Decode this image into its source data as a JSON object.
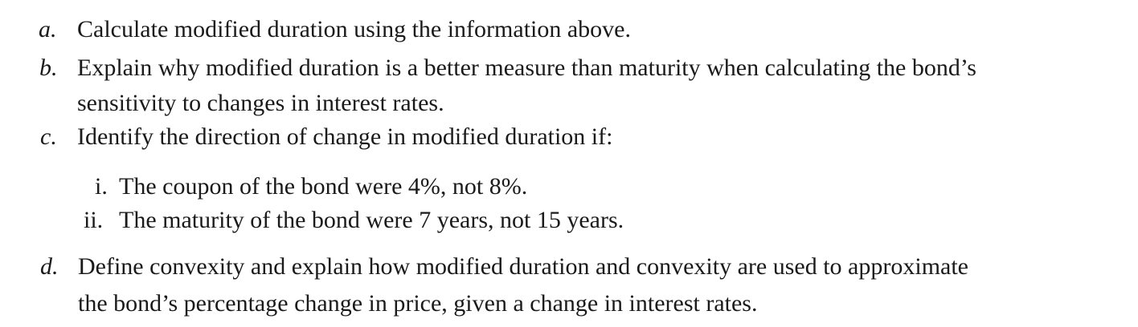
{
  "questions": {
    "a": {
      "marker": "a.",
      "text": "Calculate modified duration using the information above."
    },
    "b": {
      "marker": "b.",
      "line1": "Explain why modified duration is a better measure than maturity when calculating the bond’s",
      "line2": "sensitivity to changes in interest rates."
    },
    "c": {
      "marker": "c.",
      "text": "Identify the direction of change in modified duration if:",
      "sub": [
        {
          "marker": "i.",
          "text": "The coupon of the bond were 4%, not 8%."
        },
        {
          "marker": "ii.",
          "text": "The maturity of the bond were 7 years, not 15 years."
        }
      ]
    },
    "d": {
      "marker": "d.",
      "line1": "Define convexity and explain how modified duration and convexity are used to approximate",
      "line2": "the bond’s percentage change in price, given a change in interest rates."
    }
  }
}
